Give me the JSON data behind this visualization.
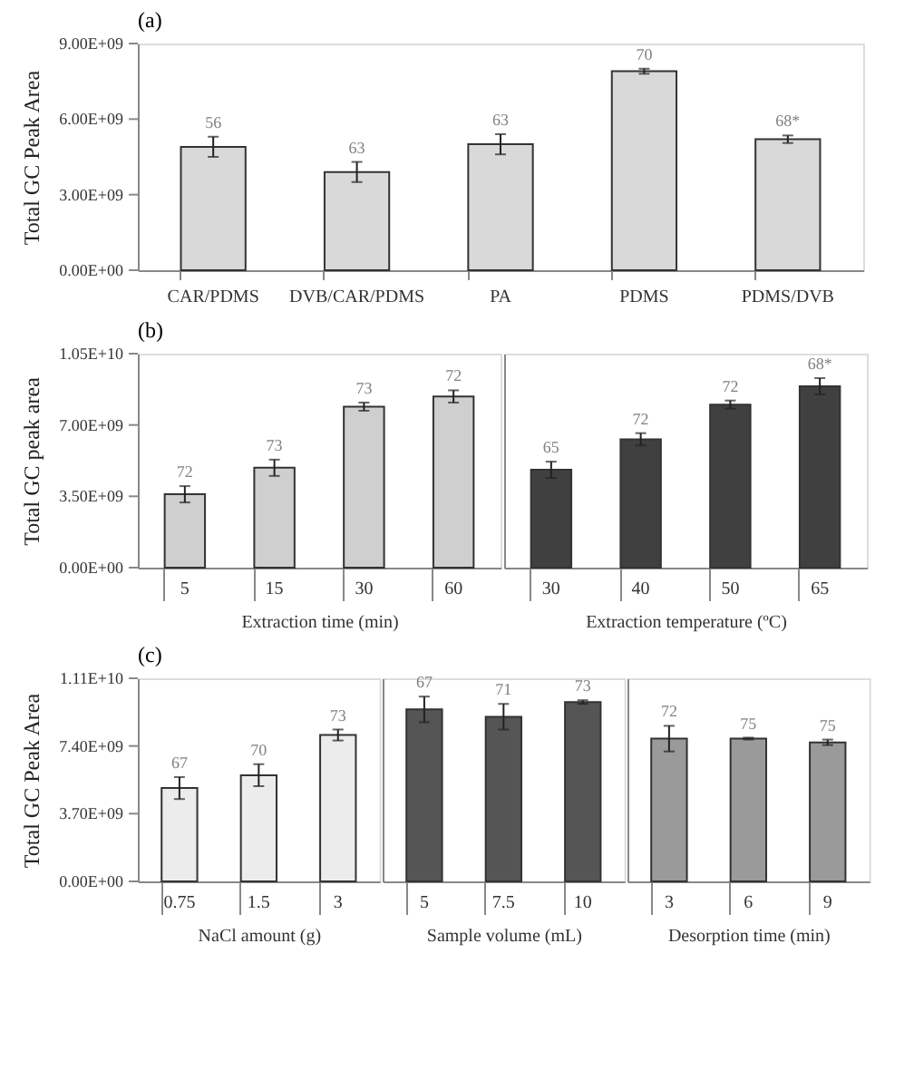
{
  "chart_data": [
    {
      "type": "bar",
      "title": "(a)",
      "ylabel": "Total  GC  Peak  Area",
      "categories": [
        "CAR/PDMS",
        "DVB/CAR/PDMS",
        "PA",
        "PDMS",
        "PDMS/DVB"
      ],
      "values": [
        4900000000.0,
        3900000000.0,
        5000000000.0,
        7900000000.0,
        5200000000.0
      ],
      "errors": [
        400000000.0,
        400000000.0,
        400000000.0,
        100000000.0,
        150000000.0
      ],
      "color": "#d9d9d9",
      "ylim": [
        0,
        9000000000.0
      ],
      "yticks": [
        {
          "value": 0,
          "label": "0.00E+00"
        },
        {
          "value": 3000000000.0,
          "label": "3.00E+09"
        },
        {
          "value": 6000000000.0,
          "label": "6.00E+09"
        },
        {
          "value": 9000000000.0,
          "label": "9.00E+09"
        }
      ],
      "annotations": [
        {
          "text": "56",
          "x": "CAR/PDMS",
          "y": 5300000000.0
        },
        {
          "text": "63",
          "x": "DVB/CAR/PDMS",
          "y": 4300000000.0
        },
        {
          "text": "63",
          "x": "PA",
          "y": 5400000000.0
        },
        {
          "text": "70",
          "x": "PDMS",
          "y": 8000000000.0
        },
        {
          "text": "68*",
          "x": "PDMS/DVB",
          "y": 5350000000.0
        }
      ]
    },
    {
      "type": "bar",
      "title": "(b)",
      "ylabel": "Total  GC  peak  area",
      "xlabel": "Extraction time (min)",
      "categories": [
        "5",
        "15",
        "30",
        "60"
      ],
      "values": [
        3600000000.0,
        4900000000.0,
        7900000000.0,
        8400000000.0
      ],
      "errors": [
        400000000.0,
        400000000.0,
        200000000.0,
        300000000.0
      ],
      "color": "#cfcfcf",
      "ylim": [
        0,
        10500000000.0
      ],
      "yticks": [
        {
          "value": 0,
          "label": "0.00E+00"
        },
        {
          "value": 3500000000.0,
          "label": "3.50E+09"
        },
        {
          "value": 7000000000.0,
          "label": "7.00E+09"
        },
        {
          "value": 10500000000.0,
          "label": "1.05E+10"
        }
      ],
      "annotations": [
        {
          "text": "72",
          "x": "5",
          "y": 4000000000.0
        },
        {
          "text": "73",
          "x": "15",
          "y": 5300000000.0
        },
        {
          "text": "73",
          "x": "30",
          "y": 8100000000.0
        },
        {
          "text": "72",
          "x": "60",
          "y": 8700000000.0
        }
      ]
    },
    {
      "type": "bar",
      "xlabel": "Extraction temperature (ºC)",
      "categories": [
        "30",
        "40",
        "50",
        "65"
      ],
      "values": [
        4800000000.0,
        6300000000.0,
        8000000000.0,
        8900000000.0
      ],
      "errors": [
        400000000.0,
        300000000.0,
        200000000.0,
        400000000.0
      ],
      "color": "#404040",
      "ylim": [
        0,
        10500000000.0
      ],
      "tick_labels": "x",
      "annotations": [
        {
          "text": "65",
          "x": "30",
          "y": 5200000000.0
        },
        {
          "text": "72",
          "x": "40",
          "y": 6600000000.0
        },
        {
          "text": "72",
          "x": "50",
          "y": 8200000000.0
        },
        {
          "text": "68*",
          "x": "65",
          "y": 9300000000.0
        }
      ]
    },
    {
      "type": "bar",
      "title": "(c)",
      "ylabel": "Total  GC  Peak  Area",
      "xlabel": "NaCl amount (g)",
      "categories": [
        "0.75",
        "1.5",
        "3"
      ],
      "values": [
        5100000000.0,
        5800000000.0,
        8000000000.0
      ],
      "errors": [
        600000000.0,
        600000000.0,
        300000000.0
      ],
      "color": "#ececec",
      "ylim": [
        0,
        11100000000.0
      ],
      "yticks": [
        {
          "value": 0,
          "label": "0.00E+00"
        },
        {
          "value": 3700000000.0,
          "label": "3.70E+09"
        },
        {
          "value": 7400000000.0,
          "label": "7.40E+09"
        },
        {
          "value": 11100000000.0,
          "label": "1.11E+10"
        }
      ],
      "annotations": [
        {
          "text": "67",
          "x": "0.75",
          "y": 5700000000.0
        },
        {
          "text": "70",
          "x": "1.5",
          "y": 6400000000.0
        },
        {
          "text": "73",
          "x": "3",
          "y": 8300000000.0
        }
      ]
    },
    {
      "type": "bar",
      "xlabel": "Sample volume (mL)",
      "categories": [
        "5",
        "7.5",
        "10"
      ],
      "values": [
        9400000000.0,
        9000000000.0,
        9800000000.0
      ],
      "errors": [
        700000000.0,
        700000000.0,
        100000000.0
      ],
      "color": "#555555",
      "ylim": [
        0,
        11100000000.0
      ],
      "tick_labels": "x",
      "annotations": [
        {
          "text": "67",
          "x": "5",
          "y": 10100000000.0
        },
        {
          "text": "71",
          "x": "7.5",
          "y": 9700000000.0
        },
        {
          "text": "73",
          "x": "10",
          "y": 9900000000.0
        }
      ]
    },
    {
      "type": "bar",
      "xlabel": "Desorption time (min)",
      "categories": [
        "3",
        "6",
        "9"
      ],
      "values": [
        7800000000.0,
        7800000000.0,
        7600000000.0
      ],
      "errors": [
        700000000.0,
        50000000.0,
        150000000.0
      ],
      "color": "#9a9a9a",
      "ylim": [
        0,
        11100000000.0
      ],
      "tick_labels": "x",
      "annotations": [
        {
          "text": "72",
          "x": "3",
          "y": 8500000000.0
        },
        {
          "text": "75",
          "x": "6",
          "y": 7850000000.0
        },
        {
          "text": "75",
          "x": "9",
          "y": 7750000000.0
        }
      ]
    }
  ]
}
